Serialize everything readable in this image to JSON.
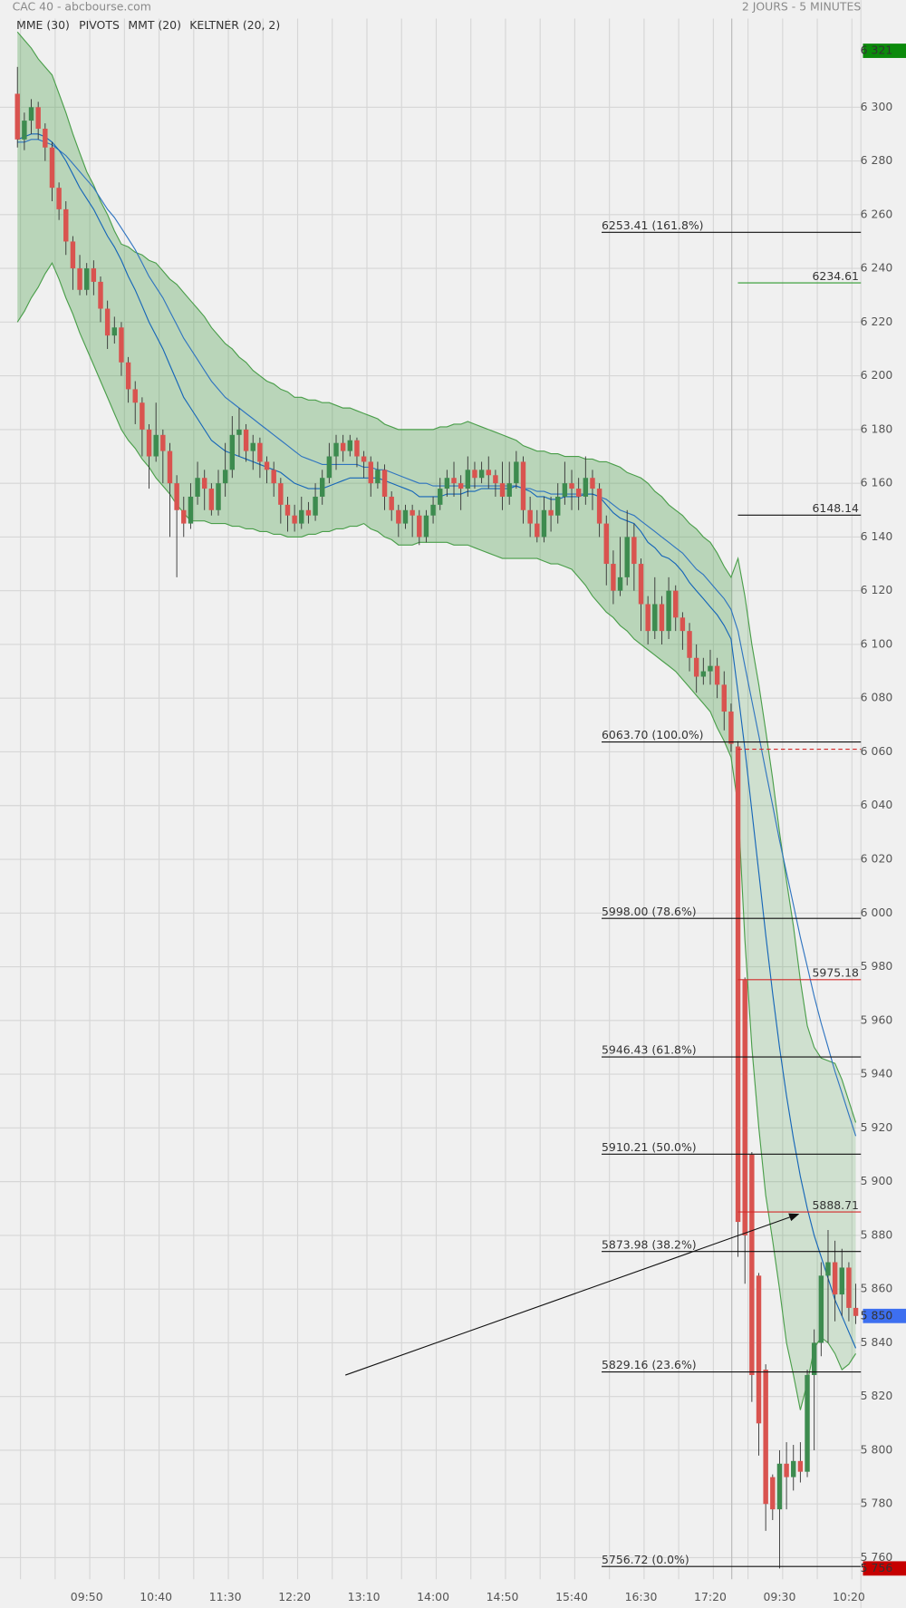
{
  "chart_data": {
    "type": "candlestick",
    "title": "CAC 40 - abcbourse.com",
    "subtitle": "2 JOURS - 5 MINUTES",
    "up_color": "#3d8b4f",
    "down_color": "#d9534f",
    "grid": true,
    "categories": [
      null,
      null,
      null,
      null,
      null,
      null,
      null,
      null,
      null,
      null,
      "09:50",
      null,
      null,
      null,
      null,
      null,
      null,
      null,
      null,
      null,
      "10:40",
      null,
      null,
      null,
      null,
      null,
      null,
      null,
      null,
      null,
      "11:30",
      null,
      null,
      null,
      null,
      null,
      null,
      null,
      null,
      null,
      "12:20",
      null,
      null,
      null,
      null,
      null,
      null,
      null,
      null,
      null,
      "13:10",
      null,
      null,
      null,
      null,
      null,
      null,
      null,
      null,
      null,
      "14:00",
      null,
      null,
      null,
      null,
      null,
      null,
      null,
      null,
      null,
      "14:50",
      null,
      null,
      null,
      null,
      null,
      null,
      null,
      null,
      null,
      "15:40",
      null,
      null,
      null,
      null,
      null,
      null,
      null,
      null,
      null,
      "16:30",
      null,
      null,
      null,
      null,
      null,
      null,
      null,
      null,
      null,
      "17:20",
      null,
      null,
      null,
      null,
      null,
      null,
      null,
      null,
      null,
      "09:30",
      null,
      null,
      null,
      null,
      null,
      null,
      null,
      null,
      null,
      "10:20",
      null
    ],
    "open": [
      6305,
      6288,
      6295,
      6300,
      6292,
      6285,
      6270,
      6262,
      6250,
      6240,
      6232,
      6240,
      6235,
      6225,
      6215,
      6218,
      6205,
      6195,
      6190,
      6180,
      6170,
      6178,
      6172,
      6160,
      6150,
      6145,
      6155,
      6162,
      6158,
      6150,
      6160,
      6165,
      6178,
      6180,
      6172,
      6175,
      6168,
      6165,
      6160,
      6152,
      6148,
      6145,
      6150,
      6148,
      6155,
      6162,
      6170,
      6175,
      6172,
      6176,
      6170,
      6168,
      6160,
      6165,
      6155,
      6150,
      6145,
      6150,
      6148,
      6140,
      6148,
      6152,
      6158,
      6162,
      6160,
      6158,
      6165,
      6162,
      6165,
      6163,
      6160,
      6155,
      6160,
      6168,
      6150,
      6145,
      6140,
      6150,
      6148,
      6155,
      6160,
      6158,
      6155,
      6162,
      6158,
      6145,
      6130,
      6120,
      6125,
      6140,
      6130,
      6115,
      6105,
      6115,
      6105,
      6120,
      6110,
      6105,
      6095,
      6088,
      6090,
      6092,
      6085,
      6075,
      6062,
      5975,
      5910,
      5865,
      5830,
      5790,
      5778,
      5795,
      5790,
      5796,
      5792,
      5828,
      5840,
      5865,
      5870,
      5858,
      5868,
      5853
    ],
    "high": [
      6315,
      6298,
      6303,
      6302,
      6294,
      6287,
      6272,
      6265,
      6252,
      6245,
      6242,
      6243,
      6237,
      6228,
      6222,
      6220,
      6207,
      6198,
      6192,
      6182,
      6190,
      6180,
      6175,
      6163,
      6155,
      6160,
      6168,
      6165,
      6160,
      6165,
      6175,
      6185,
      6188,
      6182,
      6178,
      6177,
      6170,
      6168,
      6162,
      6155,
      6152,
      6155,
      6153,
      6160,
      6165,
      6175,
      6178,
      6178,
      6178,
      6177,
      6172,
      6170,
      6168,
      6167,
      6157,
      6152,
      6152,
      6152,
      6150,
      6150,
      6155,
      6162,
      6165,
      6168,
      6163,
      6170,
      6168,
      6168,
      6170,
      6165,
      6168,
      6168,
      6172,
      6170,
      6155,
      6150,
      6155,
      6155,
      6160,
      6168,
      6165,
      6162,
      6170,
      6165,
      6160,
      6148,
      6135,
      6140,
      6150,
      6145,
      6132,
      6118,
      6125,
      6118,
      6125,
      6122,
      6112,
      6108,
      6100,
      6095,
      6098,
      6095,
      6090,
      6078,
      6064,
      5976,
      5911,
      5866,
      5832,
      5791,
      5800,
      5803,
      5802,
      5803,
      5830,
      5845,
      5870,
      5882,
      5878,
      5875,
      5870,
      5862
    ],
    "low": [
      6285,
      6284,
      6290,
      6288,
      6280,
      6265,
      6258,
      6245,
      6232,
      6230,
      6230,
      6230,
      6220,
      6210,
      6212,
      6200,
      6190,
      6182,
      6170,
      6158,
      6168,
      6160,
      6140,
      6125,
      6140,
      6143,
      6152,
      6150,
      6148,
      6148,
      6155,
      6162,
      6170,
      6168,
      6165,
      6162,
      6160,
      6155,
      6145,
      6142,
      6142,
      6143,
      6145,
      6146,
      6152,
      6160,
      6165,
      6168,
      6170,
      6166,
      6162,
      6155,
      6158,
      6150,
      6146,
      6140,
      6143,
      6140,
      6137,
      6138,
      6145,
      6150,
      6155,
      6155,
      6150,
      6155,
      6158,
      6160,
      6158,
      6155,
      6150,
      6152,
      6158,
      6145,
      6140,
      6138,
      6138,
      6142,
      6145,
      6152,
      6150,
      6150,
      6152,
      6150,
      6140,
      6122,
      6115,
      6118,
      6122,
      6120,
      6105,
      6100,
      6102,
      6100,
      6102,
      6105,
      6098,
      6090,
      6082,
      6085,
      6085,
      6080,
      6068,
      6060,
      5872,
      5862,
      5818,
      5798,
      5770,
      5774,
      5756,
      5778,
      5785,
      5788,
      5790,
      5800,
      5835,
      5840,
      5848,
      5850,
      5848,
      5847
    ],
    "close": [
      6288,
      6295,
      6300,
      6292,
      6285,
      6270,
      6262,
      6250,
      6240,
      6232,
      6240,
      6235,
      6225,
      6215,
      6218,
      6205,
      6195,
      6190,
      6180,
      6170,
      6178,
      6172,
      6160,
      6150,
      6145,
      6155,
      6162,
      6158,
      6150,
      6160,
      6165,
      6178,
      6180,
      6172,
      6175,
      6168,
      6165,
      6160,
      6152,
      6148,
      6145,
      6150,
      6148,
      6155,
      6162,
      6170,
      6175,
      6172,
      6176,
      6170,
      6168,
      6160,
      6165,
      6155,
      6150,
      6145,
      6150,
      6148,
      6140,
      6148,
      6152,
      6158,
      6162,
      6160,
      6158,
      6165,
      6162,
      6165,
      6163,
      6160,
      6155,
      6160,
      6168,
      6150,
      6145,
      6140,
      6150,
      6148,
      6155,
      6160,
      6158,
      6155,
      6162,
      6158,
      6145,
      6130,
      6120,
      6125,
      6140,
      6130,
      6115,
      6105,
      6115,
      6105,
      6120,
      6110,
      6105,
      6095,
      6088,
      6090,
      6092,
      6085,
      6075,
      6063,
      5885,
      5880,
      5828,
      5810,
      5780,
      5778,
      5795,
      5790,
      5796,
      5792,
      5828,
      5840,
      5865,
      5870,
      5858,
      5868,
      5853,
      5850
    ],
    "series": [
      {
        "name": "MME (30)",
        "color": "#2f74c0",
        "values": [
          6287,
          6287,
          6288,
          6288,
          6287,
          6286,
          6284,
          6282,
          6279,
          6276,
          6273,
          6270,
          6266,
          6262,
          6259,
          6255,
          6251,
          6247,
          6242,
          6237,
          6233,
          6229,
          6224,
          6219,
          6214,
          6210,
          6206,
          6202,
          6198,
          6195,
          6192,
          6190,
          6188,
          6186,
          6184,
          6182,
          6180,
          6178,
          6176,
          6174,
          6172,
          6170,
          6169,
          6168,
          6167,
          6167,
          6167,
          6167,
          6167,
          6167,
          6166,
          6166,
          6165,
          6165,
          6164,
          6163,
          6162,
          6161,
          6160,
          6160,
          6159,
          6159,
          6159,
          6159,
          6159,
          6159,
          6159,
          6159,
          6159,
          6159,
          6159,
          6159,
          6159,
          6158,
          6158,
          6157,
          6157,
          6156,
          6156,
          6156,
          6156,
          6156,
          6156,
          6156,
          6155,
          6154,
          6152,
          6150,
          6149,
          6148,
          6146,
          6144,
          6142,
          6140,
          6138,
          6136,
          6134,
          6131,
          6128,
          6126,
          6123,
          6120,
          6117,
          6113,
          6105,
          6092,
          6079,
          6066,
          6053,
          6040,
          6027,
          6015,
          6003,
          5991,
          5980,
          5969,
          5959,
          5950,
          5941,
          5933,
          5925,
          5917
        ]
      },
      {
        "name": "MMT (20)",
        "color": "#1565b8",
        "values": [
          6288,
          6289,
          6290,
          6290,
          6289,
          6287,
          6284,
          6280,
          6275,
          6270,
          6266,
          6262,
          6257,
          6252,
          6248,
          6243,
          6237,
          6232,
          6226,
          6220,
          6215,
          6210,
          6204,
          6198,
          6192,
          6188,
          6184,
          6180,
          6176,
          6174,
          6172,
          6171,
          6170,
          6169,
          6168,
          6167,
          6166,
          6165,
          6164,
          6162,
          6160,
          6159,
          6158,
          6158,
          6158,
          6159,
          6160,
          6161,
          6162,
          6162,
          6162,
          6162,
          6162,
          6161,
          6160,
          6159,
          6158,
          6157,
          6155,
          6155,
          6155,
          6155,
          6156,
          6156,
          6156,
          6157,
          6157,
          6158,
          6158,
          6158,
          6158,
          6158,
          6159,
          6158,
          6157,
          6155,
          6155,
          6154,
          6154,
          6155,
          6155,
          6155,
          6156,
          6156,
          6155,
          6152,
          6149,
          6147,
          6146,
          6145,
          6142,
          6138,
          6136,
          6133,
          6132,
          6130,
          6127,
          6123,
          6120,
          6117,
          6114,
          6111,
          6107,
          6102,
          6082,
          6061,
          6038,
          6015,
          5992,
          5970,
          5950,
          5932,
          5916,
          5902,
          5890,
          5880,
          5872,
          5864,
          5856,
          5850,
          5844,
          5838
        ]
      },
      {
        "name": "KELTNER (20, 2)",
        "color": "#4a9e4a",
        "upper": [
          6328,
          6325,
          6322,
          6318,
          6315,
          6312,
          6305,
          6298,
          6290,
          6283,
          6276,
          6271,
          6265,
          6260,
          6254,
          6249,
          6248,
          6246,
          6245,
          6243,
          6242,
          6239,
          6236,
          6234,
          6231,
          6228,
          6225,
          6222,
          6218,
          6215,
          6212,
          6210,
          6207,
          6205,
          6202,
          6200,
          6198,
          6197,
          6195,
          6194,
          6192,
          6192,
          6191,
          6191,
          6190,
          6190,
          6189,
          6188,
          6188,
          6187,
          6186,
          6185,
          6184,
          6182,
          6181,
          6180,
          6180,
          6180,
          6180,
          6180,
          6180,
          6181,
          6181,
          6182,
          6182,
          6183,
          6182,
          6181,
          6180,
          6179,
          6178,
          6177,
          6176,
          6174,
          6173,
          6172,
          6172,
          6171,
          6171,
          6170,
          6170,
          6170,
          6169,
          6169,
          6168,
          6168,
          6167,
          6166,
          6164,
          6163,
          6162,
          6160,
          6157,
          6155,
          6152,
          6150,
          6148,
          6145,
          6143,
          6140,
          6138,
          6134,
          6129,
          6125,
          6132,
          6118,
          6100,
          6085,
          6068,
          6050,
          6030,
          6012,
          5995,
          5975,
          5958,
          5950,
          5946,
          5945,
          5944,
          5938,
          5930,
          5922
        ],
        "lower": [
          6220,
          6224,
          6229,
          6233,
          6238,
          6242,
          6236,
          6229,
          6223,
          6216,
          6210,
          6204,
          6198,
          6192,
          6186,
          6180,
          6176,
          6173,
          6169,
          6166,
          6162,
          6159,
          6156,
          6152,
          6149,
          6146,
          6146,
          6146,
          6145,
          6145,
          6145,
          6144,
          6144,
          6143,
          6143,
          6142,
          6142,
          6141,
          6141,
          6140,
          6140,
          6140,
          6141,
          6141,
          6142,
          6142,
          6143,
          6143,
          6144,
          6144,
          6145,
          6143,
          6142,
          6140,
          6139,
          6137,
          6137,
          6137,
          6138,
          6138,
          6138,
          6138,
          6138,
          6137,
          6137,
          6137,
          6136,
          6135,
          6134,
          6133,
          6132,
          6132,
          6132,
          6132,
          6132,
          6132,
          6131,
          6130,
          6130,
          6129,
          6128,
          6125,
          6122,
          6118,
          6115,
          6112,
          6110,
          6107,
          6105,
          6102,
          6100,
          6098,
          6096,
          6094,
          6092,
          6090,
          6087,
          6084,
          6081,
          6078,
          6075,
          6069,
          6064,
          6058,
          6040,
          5990,
          5950,
          5920,
          5895,
          5878,
          5860,
          5840,
          5828,
          5815,
          5825,
          5838,
          5842,
          5840,
          5836,
          5830,
          5832,
          5836
        ]
      }
    ],
    "pivots": {
      "name": "PIVOTS",
      "color": "#555555",
      "levels": [
        {
          "value": 6234.61,
          "color": "#2e9a2e"
        },
        {
          "value": 6148.14,
          "color": "#111111"
        },
        {
          "value": 6061,
          "color": "#d42a2a",
          "dashed": true
        },
        {
          "value": 5975.18,
          "color": "#d42a2a"
        },
        {
          "value": 5888.71,
          "color": "#d42a2a"
        }
      ]
    },
    "fibonacci": [
      {
        "value": 6253.41,
        "label": "6253.41  (161.8%)"
      },
      {
        "value": 6063.7,
        "label": "6063.70  (100.0%)"
      },
      {
        "value": 5998,
        "label": "5998.00  (78.6%)"
      },
      {
        "value": 5946.43,
        "label": "5946.43  (61.8%)"
      },
      {
        "value": 5910.21,
        "label": "5910.21  (50.0%)"
      },
      {
        "value": 5873.98,
        "label": "5873.98  (38.2%)"
      },
      {
        "value": 5829.16,
        "label": "5829.16  (23.6%)"
      },
      {
        "value": 5756.72,
        "label": "5756.72  (0.0%)"
      }
    ],
    "price_tags": [
      {
        "value": 6321,
        "label": "6 321",
        "color": "#0b8a0b"
      },
      {
        "value": 5850,
        "label": "5 850",
        "color": "#3d6ff0"
      },
      {
        "value": 5756,
        "label": "5 756",
        "color": "#c60000"
      }
    ],
    "ylim": [
      5752,
      6333
    ],
    "yticks": [
      {
        "value": 5760,
        "label": "5 760"
      },
      {
        "value": 5780,
        "label": "5 780"
      },
      {
        "value": 5800,
        "label": "5 800"
      },
      {
        "value": 5820,
        "label": "5 820"
      },
      {
        "value": 5840,
        "label": "5 840"
      },
      {
        "value": 5860,
        "label": "5 860"
      },
      {
        "value": 5880,
        "label": "5 880"
      },
      {
        "value": 5900,
        "label": "5 900"
      },
      {
        "value": 5920,
        "label": "5 920"
      },
      {
        "value": 5940,
        "label": "5 940"
      },
      {
        "value": 5960,
        "label": "5 960"
      },
      {
        "value": 5980,
        "label": "5 980"
      },
      {
        "value": 6000,
        "label": "6 000"
      },
      {
        "value": 6020,
        "label": "6 020"
      },
      {
        "value": 6040,
        "label": "6 040"
      },
      {
        "value": 6060,
        "label": "6 060"
      },
      {
        "value": 6080,
        "label": "6 080"
      },
      {
        "value": 6100,
        "label": "6 100"
      },
      {
        "value": 6120,
        "label": "6 120"
      },
      {
        "value": 6140,
        "label": "6 140"
      },
      {
        "value": 6160,
        "label": "6 160"
      },
      {
        "value": 6180,
        "label": "6 180"
      },
      {
        "value": 6200,
        "label": "6 200"
      },
      {
        "value": 6220,
        "label": "6 220"
      },
      {
        "value": 6240,
        "label": "6 240"
      },
      {
        "value": 6260,
        "label": "6 260"
      },
      {
        "value": 6280,
        "label": "6 280"
      },
      {
        "value": 6300,
        "label": "6 300"
      }
    ]
  }
}
